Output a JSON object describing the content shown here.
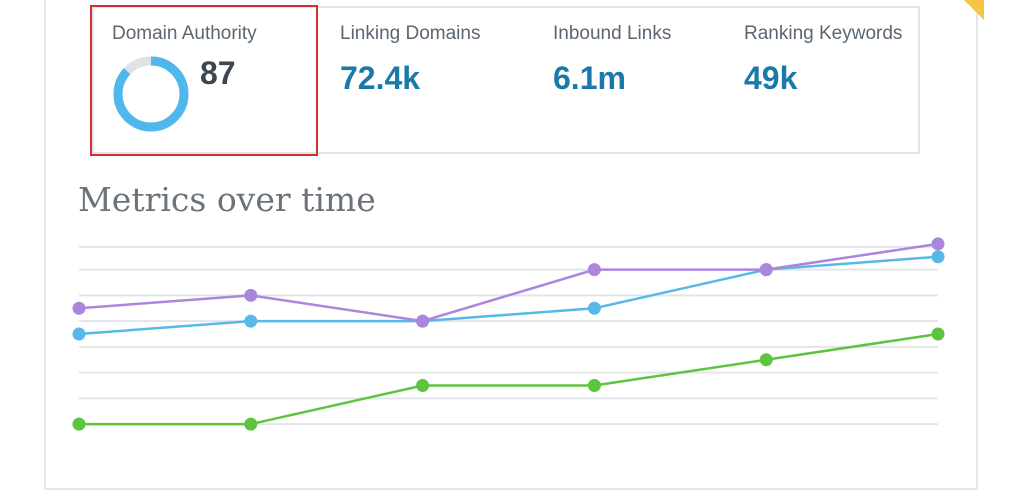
{
  "stats": [
    {
      "label": "Domain Authority",
      "value": "87"
    },
    {
      "label": "Linking Domains",
      "value": "72.4k"
    },
    {
      "label": "Inbound Links",
      "value": "6.1m"
    },
    {
      "label": "Ranking Keywords",
      "value": "49k"
    }
  ],
  "domain_authority_score": 87,
  "colors": {
    "accent": "#1979a8",
    "donut_fill": "#4fb7ec",
    "donut_track": "#dfe3e6",
    "highlight": "#d32f2f",
    "corner": "#f6c445"
  },
  "chart": {
    "title": "Metrics over time"
  },
  "chart_data": {
    "type": "line",
    "title": "Metrics over time",
    "x": [
      1,
      2,
      3,
      4,
      5,
      6
    ],
    "ylim": [
      0,
      8
    ],
    "grid": true,
    "series": [
      {
        "color": "#aa86dd",
        "values": [
          5,
          5.5,
          4.5,
          6.5,
          6.5,
          7.5
        ]
      },
      {
        "color": "#58b9e8",
        "values": [
          4,
          4.5,
          4.5,
          5,
          6.5,
          7
        ]
      },
      {
        "color": "#5cc43e",
        "values": [
          0.5,
          0.5,
          2,
          2,
          3,
          4
        ]
      }
    ]
  }
}
